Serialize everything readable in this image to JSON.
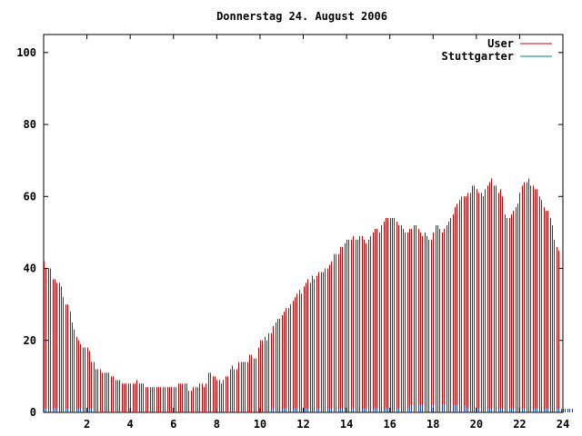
{
  "chart_data": {
    "type": "bar",
    "title": "Donnerstag 24. August 2006",
    "xlabel": "",
    "ylabel": "",
    "xlim": [
      0,
      24
    ],
    "ylim": [
      0,
      105
    ],
    "x_ticks": [
      2,
      4,
      6,
      8,
      10,
      12,
      14,
      16,
      18,
      20,
      22,
      24
    ],
    "y_ticks": [
      0,
      20,
      40,
      60,
      80,
      100
    ],
    "grid": false,
    "legend_position": "top-right",
    "bin_hours": 0.1,
    "series": [
      {
        "name": "User",
        "color": "#cc0000",
        "style": "impulses",
        "values": [
          42,
          40,
          40,
          40,
          37,
          37,
          36,
          36,
          35,
          32,
          30,
          30,
          28,
          25,
          23,
          21,
          20,
          19,
          18,
          18,
          18,
          17,
          14,
          14,
          12,
          12,
          12,
          11,
          11,
          11,
          11,
          10,
          10,
          9,
          9,
          9,
          8,
          8,
          8,
          8,
          8,
          8,
          8,
          9,
          8,
          8,
          8,
          7,
          7,
          7,
          7,
          7,
          7,
          7,
          7,
          7,
          7,
          7,
          7,
          7,
          7,
          7,
          8,
          8,
          8,
          8,
          8,
          6,
          6,
          7,
          7,
          7,
          8,
          8,
          7,
          8,
          11,
          11,
          10,
          10,
          9,
          9,
          8,
          9,
          10,
          10,
          12,
          13,
          12,
          12,
          14,
          14,
          14,
          14,
          14,
          16,
          16,
          15,
          15,
          18,
          20,
          20,
          21,
          20,
          22,
          22,
          24,
          25,
          26,
          26,
          27,
          28,
          29,
          29,
          30,
          31,
          32,
          33,
          34,
          33,
          35,
          36,
          37,
          36,
          38,
          37,
          38,
          39,
          39,
          39,
          40,
          40,
          41,
          42,
          44,
          44,
          44,
          46,
          46,
          47,
          48,
          48,
          48,
          49,
          48,
          48,
          49,
          49,
          48,
          47,
          48,
          49,
          50,
          51,
          51,
          50,
          52,
          53,
          54,
          54,
          54,
          54,
          54,
          53,
          52,
          52,
          51,
          50,
          50,
          51,
          51,
          52,
          52,
          51,
          50,
          49,
          50,
          49,
          48,
          48,
          50,
          52,
          52,
          51,
          50,
          51,
          52,
          53,
          54,
          55,
          57,
          58,
          59,
          60,
          60,
          60,
          61,
          61,
          63,
          63,
          62,
          61,
          61,
          60,
          62,
          63,
          64,
          65,
          63,
          63,
          61,
          62,
          60,
          55,
          54,
          54,
          55,
          56,
          57,
          58,
          61,
          63,
          64,
          64,
          65,
          63,
          63,
          62,
          62,
          60,
          59,
          57,
          56,
          56,
          54,
          52,
          48,
          46,
          45
        ]
      },
      {
        "name": "Stuttgarter",
        "color": "#008080",
        "style": "impulses",
        "values": [
          1,
          1,
          1,
          1,
          1,
          1,
          1,
          1,
          1,
          1,
          1,
          1,
          1,
          1,
          1,
          1,
          1,
          1,
          1,
          1,
          1,
          1,
          1,
          1,
          0,
          0,
          0,
          0,
          0,
          0,
          0,
          0,
          0,
          0,
          0,
          0,
          0,
          0,
          0,
          0,
          0,
          0,
          0,
          0,
          0,
          0,
          0,
          0,
          0,
          0,
          0,
          0,
          0,
          0,
          0,
          0,
          0,
          0,
          0,
          0,
          0,
          0,
          0,
          0,
          0,
          0,
          0,
          0,
          0,
          0,
          0,
          0,
          0,
          0,
          0,
          0,
          0,
          0,
          0,
          0,
          0,
          0,
          0,
          0,
          0,
          0,
          0,
          0,
          0,
          0,
          0,
          0,
          0,
          0,
          0,
          0,
          0,
          0,
          0,
          0,
          0,
          0,
          0,
          0,
          0,
          1,
          1,
          1,
          1,
          1,
          1,
          1,
          1,
          1,
          1,
          1,
          1,
          1,
          1,
          1,
          1,
          1,
          1,
          1,
          1,
          1,
          1,
          1,
          1,
          1,
          1,
          1,
          1,
          1,
          1,
          1,
          1,
          1,
          1,
          1,
          1,
          1,
          1,
          1,
          1,
          1,
          1,
          1,
          1,
          1,
          1,
          1,
          1,
          1,
          1,
          1,
          1,
          1,
          1,
          1,
          1,
          1,
          1,
          1,
          1,
          1,
          1,
          1,
          1,
          2,
          2,
          2,
          2,
          2,
          2,
          2,
          2,
          2,
          2,
          2,
          2,
          2,
          2,
          2,
          2,
          2,
          2,
          2,
          2,
          2,
          2,
          2,
          2,
          2,
          2,
          1,
          1,
          1,
          1,
          1,
          1,
          1,
          1,
          1,
          1,
          1,
          1,
          1,
          1,
          1,
          1,
          1,
          1,
          1,
          1,
          1,
          1,
          1,
          1,
          1,
          1,
          1,
          1,
          1,
          1,
          1,
          1,
          1,
          1,
          1,
          1,
          1,
          1,
          1,
          1,
          1,
          1,
          1,
          1,
          1,
          1,
          1,
          1,
          1,
          1
        ]
      }
    ],
    "notes_marks": []
  }
}
